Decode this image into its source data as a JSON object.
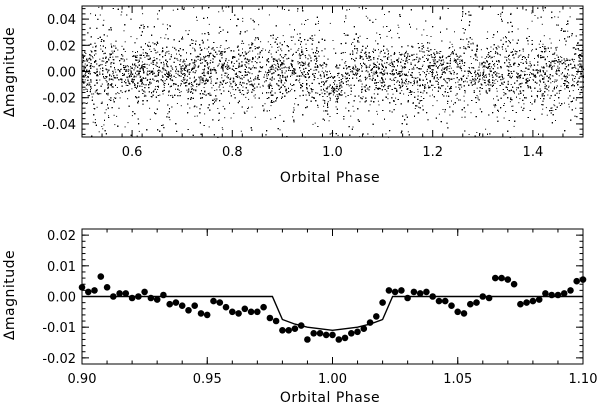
{
  "chart_data": [
    {
      "type": "scatter",
      "xlabel": "Orbital Phase",
      "ylabel": "Δmagnitude",
      "xlim": [
        0.5,
        1.5
      ],
      "ylim": [
        -0.05,
        0.05
      ],
      "xticks": [
        0.6,
        0.8,
        1.0,
        1.2,
        1.4
      ],
      "xtick_labels": [
        "0.6",
        "0.8",
        "1.0",
        "1.2",
        "1.4"
      ],
      "yticks": [
        -0.04,
        -0.02,
        0.0,
        0.02,
        0.04
      ],
      "ytick_labels": [
        "-0.04",
        "-0.02",
        "0.00",
        "0.02",
        "0.04"
      ],
      "grid": false,
      "point_count": 14000,
      "scatter_std_magnitude": 0.012,
      "transit_center": 1.0,
      "transit_depth": 0.011,
      "color": "#000000"
    },
    {
      "type": "scatter",
      "xlabel": "Orbital Phase",
      "ylabel": "Δmagnitude",
      "xlim": [
        0.9,
        1.1
      ],
      "ylim": [
        -0.022,
        0.022
      ],
      "xticks": [
        0.9,
        0.95,
        1.0,
        1.05,
        1.1
      ],
      "xtick_labels": [
        "0.90",
        "0.95",
        "1.00",
        "1.05",
        "1.10"
      ],
      "yticks": [
        -0.02,
        -0.01,
        0.0,
        0.01,
        0.02
      ],
      "ytick_labels": [
        "-0.02",
        "-0.01",
        "0.00",
        "0.01",
        "0.02"
      ],
      "grid": false,
      "binned_points": {
        "x": [
          0.9,
          0.9025,
          0.905,
          0.9075,
          0.91,
          0.9125,
          0.915,
          0.9175,
          0.92,
          0.9225,
          0.925,
          0.9275,
          0.93,
          0.9325,
          0.935,
          0.9375,
          0.94,
          0.9425,
          0.945,
          0.9475,
          0.95,
          0.9525,
          0.955,
          0.9575,
          0.96,
          0.9625,
          0.965,
          0.9675,
          0.97,
          0.9725,
          0.975,
          0.9775,
          0.98,
          0.9825,
          0.985,
          0.9875,
          0.99,
          0.9925,
          0.995,
          0.9975,
          1.0,
          1.0025,
          1.005,
          1.0075,
          1.01,
          1.0125,
          1.015,
          1.0175,
          1.02,
          1.0225,
          1.025,
          1.0275,
          1.03,
          1.0325,
          1.035,
          1.0375,
          1.04,
          1.0425,
          1.045,
          1.0475,
          1.05,
          1.0525,
          1.055,
          1.0575,
          1.06,
          1.0625,
          1.065,
          1.0675,
          1.07,
          1.0725,
          1.075,
          1.0775,
          1.08,
          1.0825,
          1.085,
          1.0875,
          1.09,
          1.0925,
          1.095,
          1.0975,
          1.1
        ],
        "y": [
          0.003,
          0.0015,
          0.002,
          0.0065,
          0.003,
          0.0,
          0.001,
          0.001,
          -0.0005,
          0.0,
          0.0015,
          -0.0005,
          -0.001,
          0.0005,
          -0.0025,
          -0.002,
          -0.003,
          -0.0045,
          -0.003,
          -0.0055,
          -0.006,
          -0.0015,
          -0.002,
          -0.0035,
          -0.005,
          -0.0055,
          -0.004,
          -0.005,
          -0.005,
          -0.0035,
          -0.007,
          -0.008,
          -0.011,
          -0.011,
          -0.0105,
          -0.0095,
          -0.014,
          -0.012,
          -0.012,
          -0.0125,
          -0.0125,
          -0.014,
          -0.0135,
          -0.012,
          -0.0115,
          -0.0105,
          -0.0085,
          -0.0065,
          -0.002,
          0.002,
          0.0015,
          0.002,
          -0.0005,
          0.0015,
          0.001,
          0.0015,
          0.0,
          -0.0015,
          -0.0015,
          -0.003,
          -0.005,
          -0.0055,
          -0.0025,
          -0.002,
          0.0,
          -0.0005,
          0.006,
          0.006,
          0.0055,
          0.004,
          -0.0025,
          -0.002,
          -0.0015,
          -0.001,
          0.001,
          0.0005,
          0.0005,
          0.001,
          0.002,
          0.005,
          0.0055
        ]
      },
      "model_curve": {
        "x": [
          0.9,
          0.976,
          0.98,
          0.985,
          0.99,
          1.0,
          1.01,
          1.015,
          1.02,
          1.024,
          1.1
        ],
        "y": [
          0.0,
          0.0,
          -0.0075,
          -0.009,
          -0.01,
          -0.011,
          -0.01,
          -0.009,
          -0.0075,
          0.0,
          0.0
        ]
      },
      "color": "#000000"
    }
  ]
}
